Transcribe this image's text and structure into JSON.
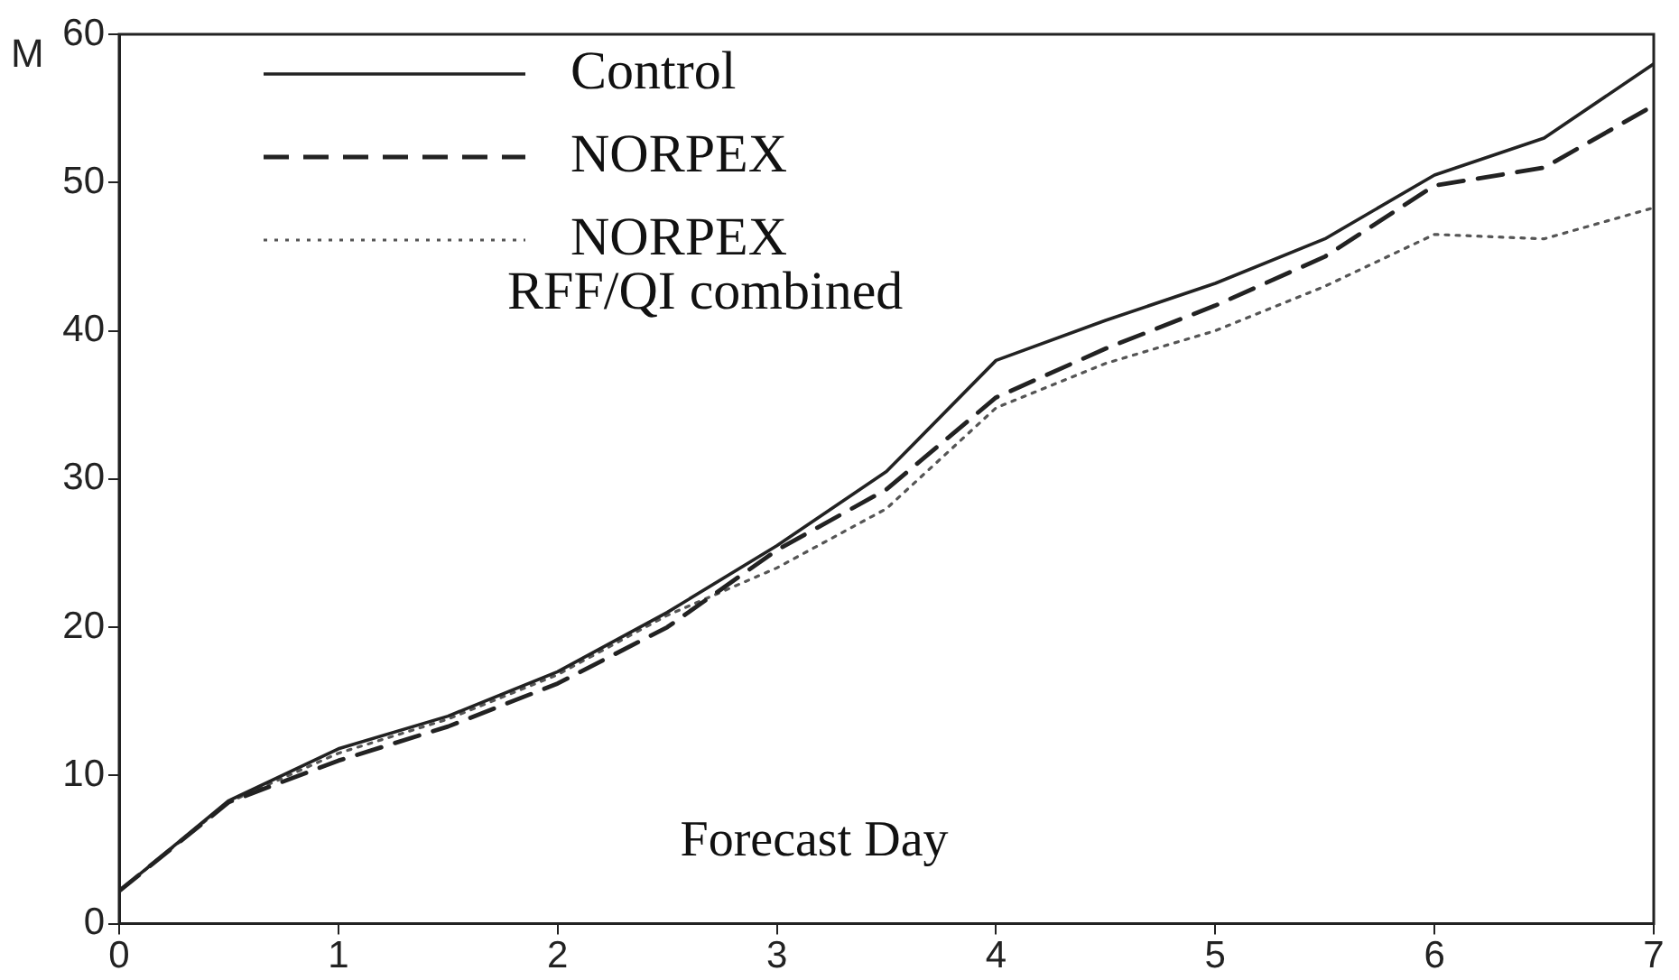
{
  "chart_data": {
    "type": "line",
    "xlabel": "Forecast Day",
    "ylabel": "M",
    "x": [
      0,
      0.5,
      1,
      1.5,
      2,
      2.5,
      3,
      3.5,
      4,
      4.5,
      5,
      5.5,
      6,
      6.5,
      7
    ],
    "xlim": [
      0,
      7
    ],
    "xticks": [
      0,
      1,
      2,
      3,
      4,
      5,
      6,
      7
    ],
    "ylim": [
      0,
      60
    ],
    "yticks": [
      0,
      10,
      20,
      30,
      40,
      50,
      60
    ],
    "grid": false,
    "legend": "top left",
    "marker": "none",
    "series": [
      {
        "name": "Control",
        "color": "#222222",
        "line_style": "solid",
        "values": [
          2.2,
          8.3,
          11.8,
          14,
          17,
          21,
          25.5,
          30.5,
          38,
          40.7,
          43.2,
          46.2,
          50.5,
          53,
          58
        ]
      },
      {
        "name": "NORPEX",
        "color": "#222222",
        "line_style": "dashed",
        "values": [
          2.2,
          8.2,
          11,
          13.3,
          16.2,
          20,
          25.2,
          29.3,
          35.5,
          38.8,
          41.7,
          45,
          49.8,
          51,
          55.2
        ]
      },
      {
        "name": "NORPEX RFF/QI combined",
        "color": "#555555",
        "line_style": "dotted",
        "values": [
          2.2,
          8.2,
          11.5,
          13.8,
          16.8,
          20.8,
          24,
          28,
          34.8,
          37.8,
          40,
          43,
          46.5,
          46.2,
          48.3
        ]
      }
    ]
  }
}
